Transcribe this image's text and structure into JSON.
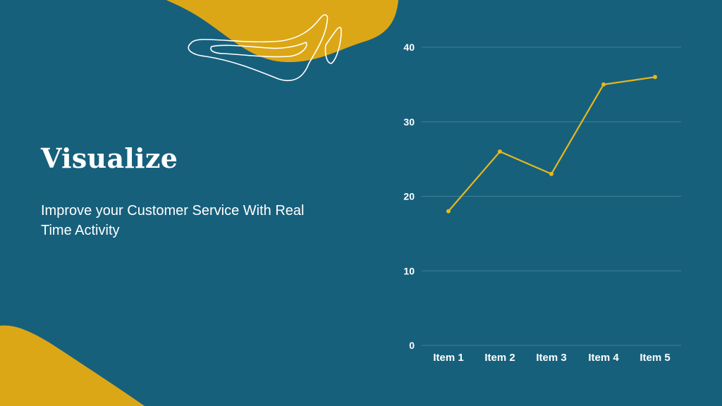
{
  "slide": {
    "title": "Visualize",
    "subtitle": "Improve your Customer Service With Real Time Activity"
  },
  "colors": {
    "background": "#17607c",
    "accent": "#dca716",
    "line": "#e8b81c",
    "grid": "#3f7f98",
    "text": "#ffffff"
  },
  "chart_data": {
    "type": "line",
    "categories": [
      "Item 1",
      "Item 2",
      "Item 3",
      "Item 4",
      "Item 5"
    ],
    "series": [
      {
        "values": [
          18,
          26,
          23,
          35,
          36
        ]
      }
    ],
    "y_ticks": [
      "0",
      "10",
      "20",
      "30",
      "40"
    ],
    "ylim": [
      0,
      40
    ],
    "grid": true,
    "markers": true,
    "title": "",
    "xlabel": "",
    "ylabel": ""
  }
}
